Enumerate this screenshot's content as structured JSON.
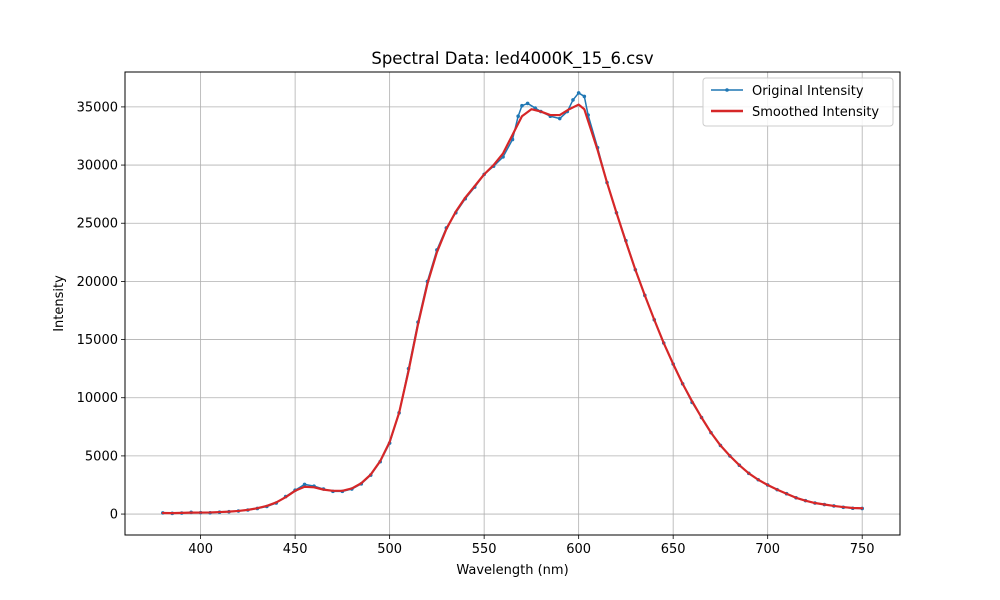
{
  "chart_data": {
    "type": "line",
    "title": "Spectral Data: led4000K_15_6.csv",
    "xlabel": "Wavelength (nm)",
    "ylabel": "Intensity",
    "xlim": [
      360,
      770
    ],
    "ylim": [
      -1800,
      38000
    ],
    "xticks": [
      400,
      450,
      500,
      550,
      600,
      650,
      700,
      750
    ],
    "yticks": [
      0,
      5000,
      10000,
      15000,
      20000,
      25000,
      30000,
      35000
    ],
    "grid": true,
    "legend_position": "top-right",
    "series": [
      {
        "name": "Original Intensity",
        "color": "#1f77b4",
        "marker": "dot",
        "points": [
          [
            380,
            100
          ],
          [
            385,
            60
          ],
          [
            390,
            90
          ],
          [
            395,
            150
          ],
          [
            400,
            120
          ],
          [
            405,
            110
          ],
          [
            410,
            160
          ],
          [
            415,
            200
          ],
          [
            420,
            260
          ],
          [
            425,
            350
          ],
          [
            430,
            480
          ],
          [
            435,
            650
          ],
          [
            440,
            950
          ],
          [
            445,
            1500
          ],
          [
            450,
            2050
          ],
          [
            455,
            2550
          ],
          [
            460,
            2400
          ],
          [
            465,
            2150
          ],
          [
            470,
            1950
          ],
          [
            475,
            1950
          ],
          [
            480,
            2150
          ],
          [
            485,
            2600
          ],
          [
            490,
            3350
          ],
          [
            495,
            4500
          ],
          [
            500,
            6100
          ],
          [
            505,
            8700
          ],
          [
            510,
            12500
          ],
          [
            515,
            16500
          ],
          [
            520,
            20000
          ],
          [
            525,
            22700
          ],
          [
            530,
            24600
          ],
          [
            535,
            25900
          ],
          [
            540,
            27100
          ],
          [
            545,
            28100
          ],
          [
            550,
            29200
          ],
          [
            555,
            29900
          ],
          [
            560,
            30700
          ],
          [
            565,
            32200
          ],
          [
            568,
            34200
          ],
          [
            570,
            35100
          ],
          [
            573,
            35300
          ],
          [
            577,
            34900
          ],
          [
            580,
            34600
          ],
          [
            585,
            34200
          ],
          [
            590,
            34000
          ],
          [
            594,
            34600
          ],
          [
            597,
            35600
          ],
          [
            600,
            36200
          ],
          [
            603,
            35900
          ],
          [
            605,
            34300
          ],
          [
            610,
            31500
          ],
          [
            615,
            28500
          ],
          [
            620,
            25900
          ],
          [
            625,
            23500
          ],
          [
            630,
            21000
          ],
          [
            635,
            18800
          ],
          [
            640,
            16700
          ],
          [
            645,
            14700
          ],
          [
            650,
            12900
          ],
          [
            655,
            11200
          ],
          [
            660,
            9600
          ],
          [
            665,
            8300
          ],
          [
            670,
            7000
          ],
          [
            675,
            5900
          ],
          [
            680,
            5000
          ],
          [
            685,
            4200
          ],
          [
            690,
            3500
          ],
          [
            695,
            2950
          ],
          [
            700,
            2500
          ],
          [
            705,
            2100
          ],
          [
            710,
            1750
          ],
          [
            715,
            1400
          ],
          [
            720,
            1150
          ],
          [
            725,
            950
          ],
          [
            730,
            820
          ],
          [
            735,
            700
          ],
          [
            740,
            580
          ],
          [
            745,
            500
          ],
          [
            750,
            480
          ]
        ]
      },
      {
        "name": "Smoothed Intensity",
        "color": "#d62728",
        "marker": "none",
        "points": [
          [
            380,
            90
          ],
          [
            385,
            80
          ],
          [
            390,
            100
          ],
          [
            395,
            120
          ],
          [
            400,
            130
          ],
          [
            405,
            140
          ],
          [
            410,
            170
          ],
          [
            415,
            210
          ],
          [
            420,
            270
          ],
          [
            425,
            360
          ],
          [
            430,
            500
          ],
          [
            435,
            700
          ],
          [
            440,
            1000
          ],
          [
            445,
            1450
          ],
          [
            450,
            2000
          ],
          [
            455,
            2350
          ],
          [
            460,
            2300
          ],
          [
            465,
            2100
          ],
          [
            470,
            2000
          ],
          [
            475,
            2000
          ],
          [
            480,
            2200
          ],
          [
            485,
            2650
          ],
          [
            490,
            3400
          ],
          [
            495,
            4550
          ],
          [
            500,
            6200
          ],
          [
            505,
            8700
          ],
          [
            510,
            12300
          ],
          [
            515,
            16300
          ],
          [
            520,
            19800
          ],
          [
            525,
            22500
          ],
          [
            530,
            24500
          ],
          [
            535,
            26000
          ],
          [
            540,
            27200
          ],
          [
            545,
            28200
          ],
          [
            550,
            29200
          ],
          [
            555,
            30000
          ],
          [
            560,
            31000
          ],
          [
            565,
            32600
          ],
          [
            570,
            34200
          ],
          [
            575,
            34800
          ],
          [
            580,
            34600
          ],
          [
            585,
            34300
          ],
          [
            590,
            34300
          ],
          [
            595,
            34800
          ],
          [
            600,
            35200
          ],
          [
            603,
            34800
          ],
          [
            605,
            33800
          ],
          [
            610,
            31300
          ],
          [
            615,
            28500
          ],
          [
            620,
            25900
          ],
          [
            625,
            23400
          ],
          [
            630,
            21000
          ],
          [
            635,
            18800
          ],
          [
            640,
            16700
          ],
          [
            645,
            14700
          ],
          [
            650,
            12900
          ],
          [
            655,
            11200
          ],
          [
            660,
            9700
          ],
          [
            665,
            8300
          ],
          [
            670,
            7000
          ],
          [
            675,
            5900
          ],
          [
            680,
            5000
          ],
          [
            685,
            4200
          ],
          [
            690,
            3500
          ],
          [
            695,
            2950
          ],
          [
            700,
            2500
          ],
          [
            705,
            2100
          ],
          [
            710,
            1750
          ],
          [
            715,
            1400
          ],
          [
            720,
            1150
          ],
          [
            725,
            950
          ],
          [
            730,
            820
          ],
          [
            735,
            700
          ],
          [
            740,
            600
          ],
          [
            745,
            520
          ],
          [
            750,
            500
          ]
        ]
      }
    ]
  }
}
